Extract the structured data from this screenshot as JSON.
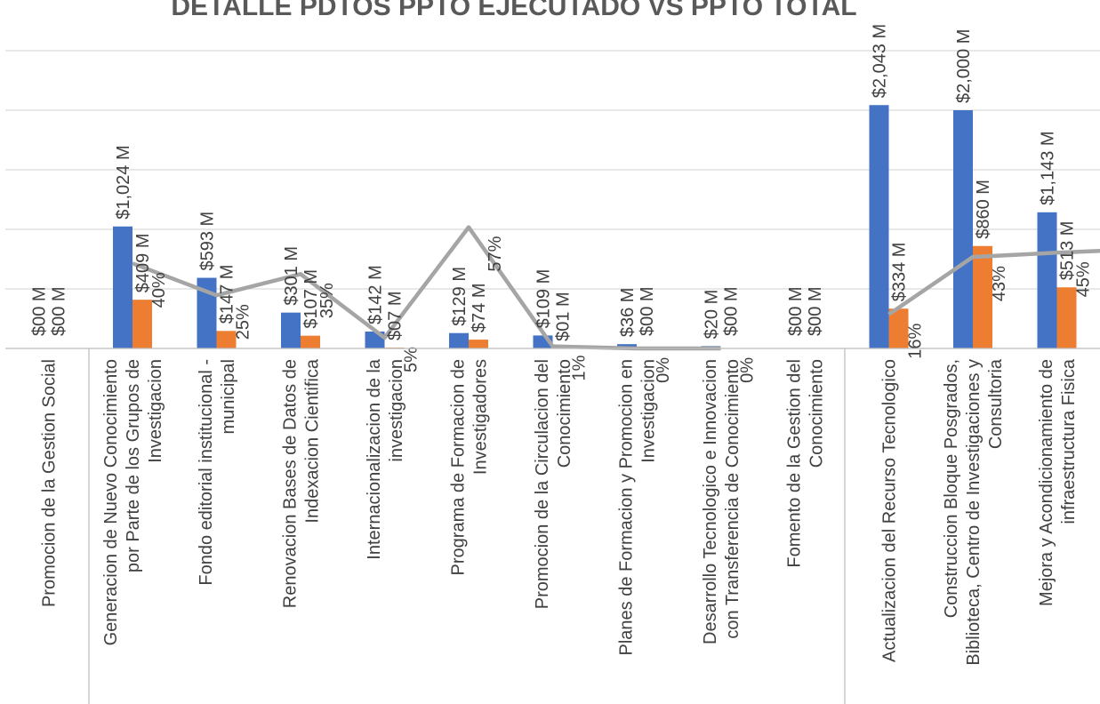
{
  "chart_data": {
    "type": "bar",
    "title": "DETALLE PDTOS PPTO EJECUTADO VS PPTO TOTAL",
    "categories": [
      [
        "Promocion de la Gestion Social"
      ],
      [
        "Generacion de Nuevo Conocimiento",
        "por Parte de los Grupos de",
        "Investigacion"
      ],
      [
        "Fondo editorial institucional -",
        "municipal"
      ],
      [
        "Renovacion Bases de Datos de",
        "Indexacion Cientifica"
      ],
      [
        "Internacionalizacion de la",
        "investigacion"
      ],
      [
        "Programa de Formacion de",
        "Investigadores"
      ],
      [
        "Promocion de la Circulacion del",
        "Conocimiento"
      ],
      [
        "Planes de Formacion y Promocion en",
        "Investigacion"
      ],
      [
        "Desarrollo Tecnologico e Innovacion",
        "con Transferencia de Conocimiento"
      ],
      [
        "Fomento de la Gestion del",
        "Conocimiento"
      ],
      [
        "Actualizacion del Recurso Tecnologico"
      ],
      [
        "Construccion Bloque Posgrados,",
        "Biblioteca, Centro de Investigaciones y",
        "Consultoria"
      ],
      [
        "Mejora y Acondicionamiento de",
        "infraestructura Fisica"
      ]
    ],
    "series": [
      {
        "name": "",
        "color": "#4472C4",
        "values": [
          0,
          1024,
          593,
          301,
          142,
          129,
          109,
          36,
          20,
          0,
          2043,
          2000,
          1143
        ],
        "labels": [
          "$00 M",
          "$1,024 M",
          "$593 M",
          "$301 M",
          "$142 M",
          "$129 M",
          "$109 M",
          "$36 M",
          "$20 M",
          "$00 M",
          "$2,043 M",
          "$2,000 M",
          "$1,143 M"
        ]
      },
      {
        "name": "",
        "color": "#ED7D31",
        "values": [
          0,
          409,
          147,
          107,
          7,
          74,
          1,
          0,
          0,
          0,
          334,
          860,
          513
        ],
        "labels": [
          "$00 M",
          "$409 M",
          "$147 M",
          "$107 M",
          "$07 M",
          "$74 M",
          "$01 M",
          "$00 M",
          "$00 M",
          "$00 M",
          "$334 M",
          "$860 M",
          "$513 M"
        ]
      },
      {
        "name": "",
        "color": "#A5A5A5",
        "type": "line",
        "values": [
          null,
          40,
          25,
          35,
          5,
          57,
          1,
          0,
          0,
          null,
          16,
          43,
          45
        ],
        "labels": [
          "",
          "40%",
          "25%",
          "35%",
          "5%",
          "57%",
          "1%",
          "0%",
          "0%",
          "",
          "16%",
          "43%",
          "45%"
        ]
      }
    ],
    "ylim": [
      0,
      2500
    ],
    "y2lim": [
      0,
      140
    ],
    "grid": true,
    "legend": "none",
    "group_separators_after": [
      0,
      9
    ]
  }
}
